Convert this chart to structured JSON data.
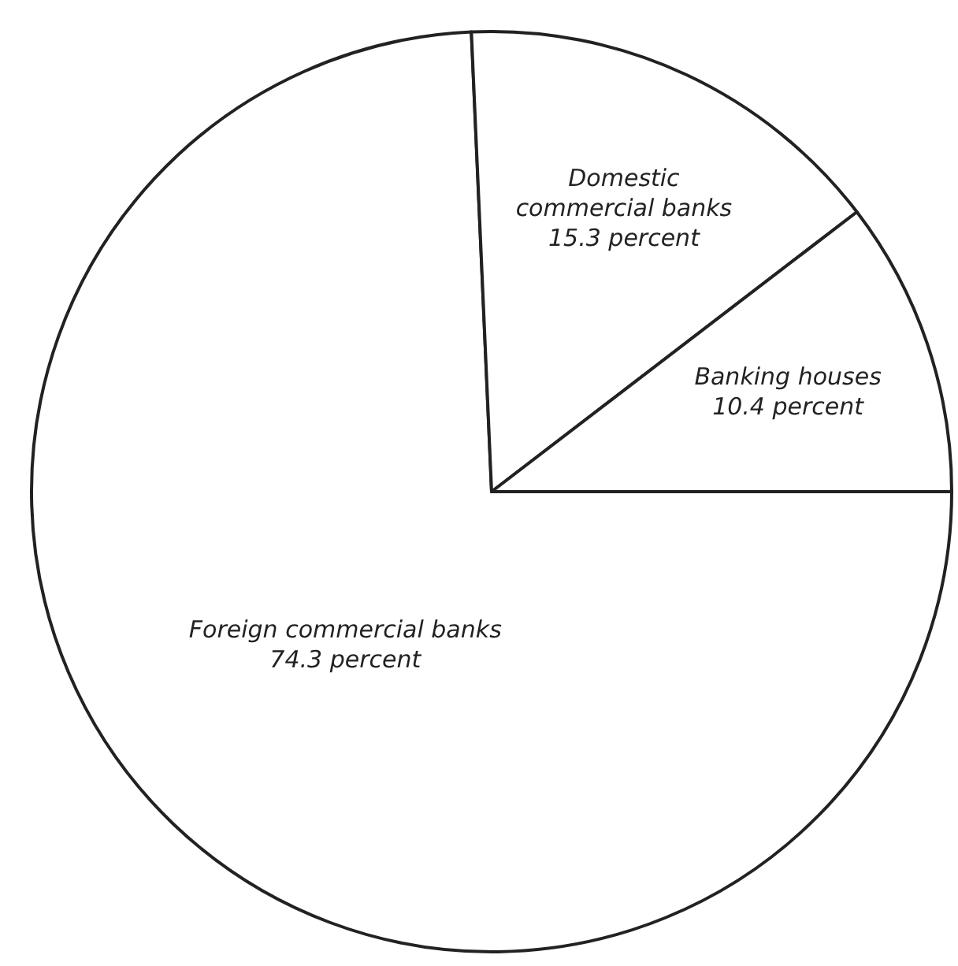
{
  "chart_data": {
    "type": "pie",
    "categories": [
      "Foreign commercial banks",
      "Domestic commercial banks",
      "Banking houses"
    ],
    "values": [
      74.3,
      15.3,
      10.4
    ],
    "colors": [
      "#ffffff",
      "#ffffff",
      "#ffffff"
    ],
    "value_labels": [
      "74.3 percent",
      "15.3 percent",
      "10.4 percent"
    ]
  }
}
